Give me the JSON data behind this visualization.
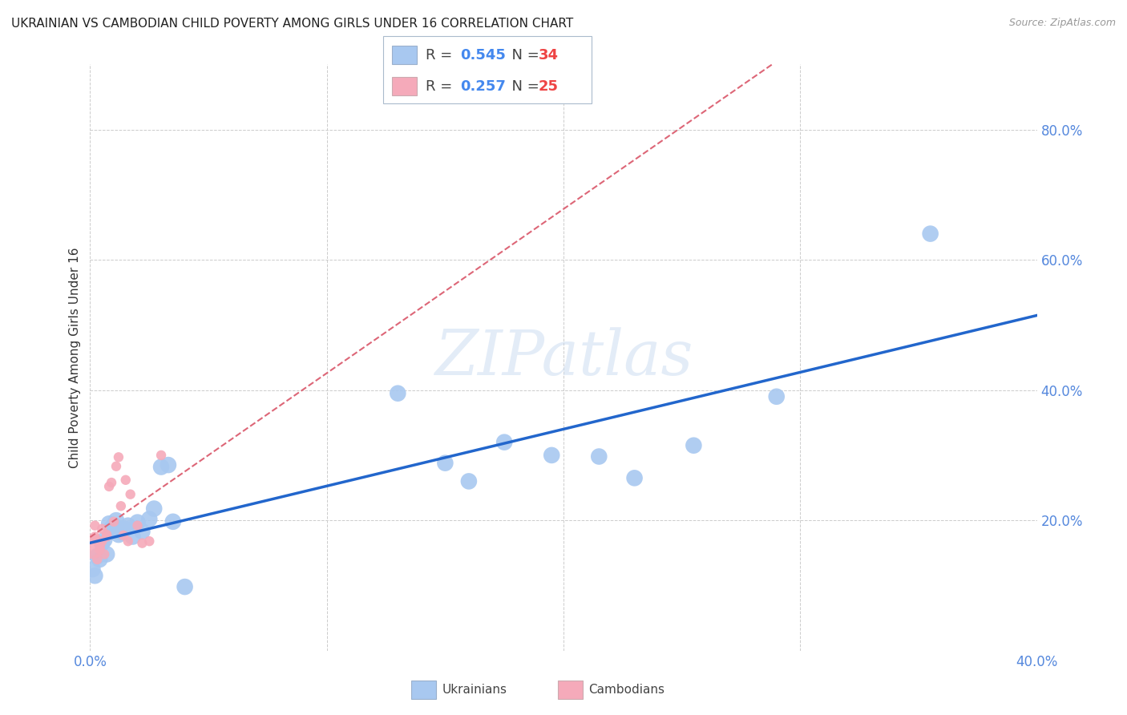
{
  "title": "UKRAINIAN VS CAMBODIAN CHILD POVERTY AMONG GIRLS UNDER 16 CORRELATION CHART",
  "source": "Source: ZipAtlas.com",
  "ylabel": "Child Poverty Among Girls Under 16",
  "xlim": [
    0.0,
    0.4
  ],
  "ylim": [
    0.0,
    0.9
  ],
  "xticks": [
    0.0,
    0.1,
    0.2,
    0.3,
    0.4
  ],
  "yticks": [
    0.0,
    0.2,
    0.4,
    0.6,
    0.8
  ],
  "xtick_labels_show": [
    "0.0%",
    "",
    "",
    "",
    "40.0%"
  ],
  "ytick_labels_show": [
    "",
    "20.0%",
    "40.0%",
    "60.0%",
    "80.0%"
  ],
  "background_color": "#ffffff",
  "grid_color": "#cccccc",
  "ukrainians_color": "#a8c8f0",
  "cambodians_color": "#f5aaba",
  "ukrainians_line_color": "#2266cc",
  "cambodians_line_color": "#dd6677",
  "R_ukrainian": 0.545,
  "N_ukrainian": 34,
  "R_cambodian": 0.257,
  "N_cambodian": 25,
  "watermark": "ZIPatlas",
  "ukrainians_x": [
    0.001,
    0.002,
    0.003,
    0.004,
    0.005,
    0.006,
    0.007,
    0.008,
    0.009,
    0.01,
    0.011,
    0.012,
    0.013,
    0.015,
    0.016,
    0.018,
    0.02,
    0.022,
    0.025,
    0.027,
    0.03,
    0.033,
    0.035,
    0.04,
    0.13,
    0.15,
    0.16,
    0.175,
    0.195,
    0.215,
    0.23,
    0.255,
    0.29,
    0.355
  ],
  "ukrainians_y": [
    0.125,
    0.115,
    0.145,
    0.14,
    0.165,
    0.17,
    0.148,
    0.195,
    0.188,
    0.192,
    0.2,
    0.178,
    0.182,
    0.187,
    0.192,
    0.175,
    0.197,
    0.183,
    0.202,
    0.218,
    0.282,
    0.285,
    0.198,
    0.098,
    0.395,
    0.288,
    0.26,
    0.32,
    0.3,
    0.298,
    0.265,
    0.315,
    0.39,
    0.64
  ],
  "cambodians_x": [
    0.001,
    0.002,
    0.002,
    0.003,
    0.003,
    0.004,
    0.005,
    0.005,
    0.006,
    0.007,
    0.007,
    0.008,
    0.009,
    0.01,
    0.011,
    0.012,
    0.013,
    0.014,
    0.015,
    0.016,
    0.017,
    0.02,
    0.022,
    0.025,
    0.03
  ],
  "cambodians_y": [
    0.16,
    0.175,
    0.192,
    0.14,
    0.168,
    0.155,
    0.168,
    0.187,
    0.148,
    0.178,
    0.175,
    0.252,
    0.258,
    0.198,
    0.283,
    0.297,
    0.222,
    0.177,
    0.262,
    0.168,
    0.24,
    0.192,
    0.165,
    0.168,
    0.3
  ],
  "cambodians_sizes": [
    500,
    80,
    80,
    80,
    80,
    80,
    80,
    80,
    80,
    80,
    80,
    80,
    80,
    80,
    80,
    80,
    80,
    80,
    80,
    80,
    80,
    80,
    80,
    80,
    80
  ]
}
